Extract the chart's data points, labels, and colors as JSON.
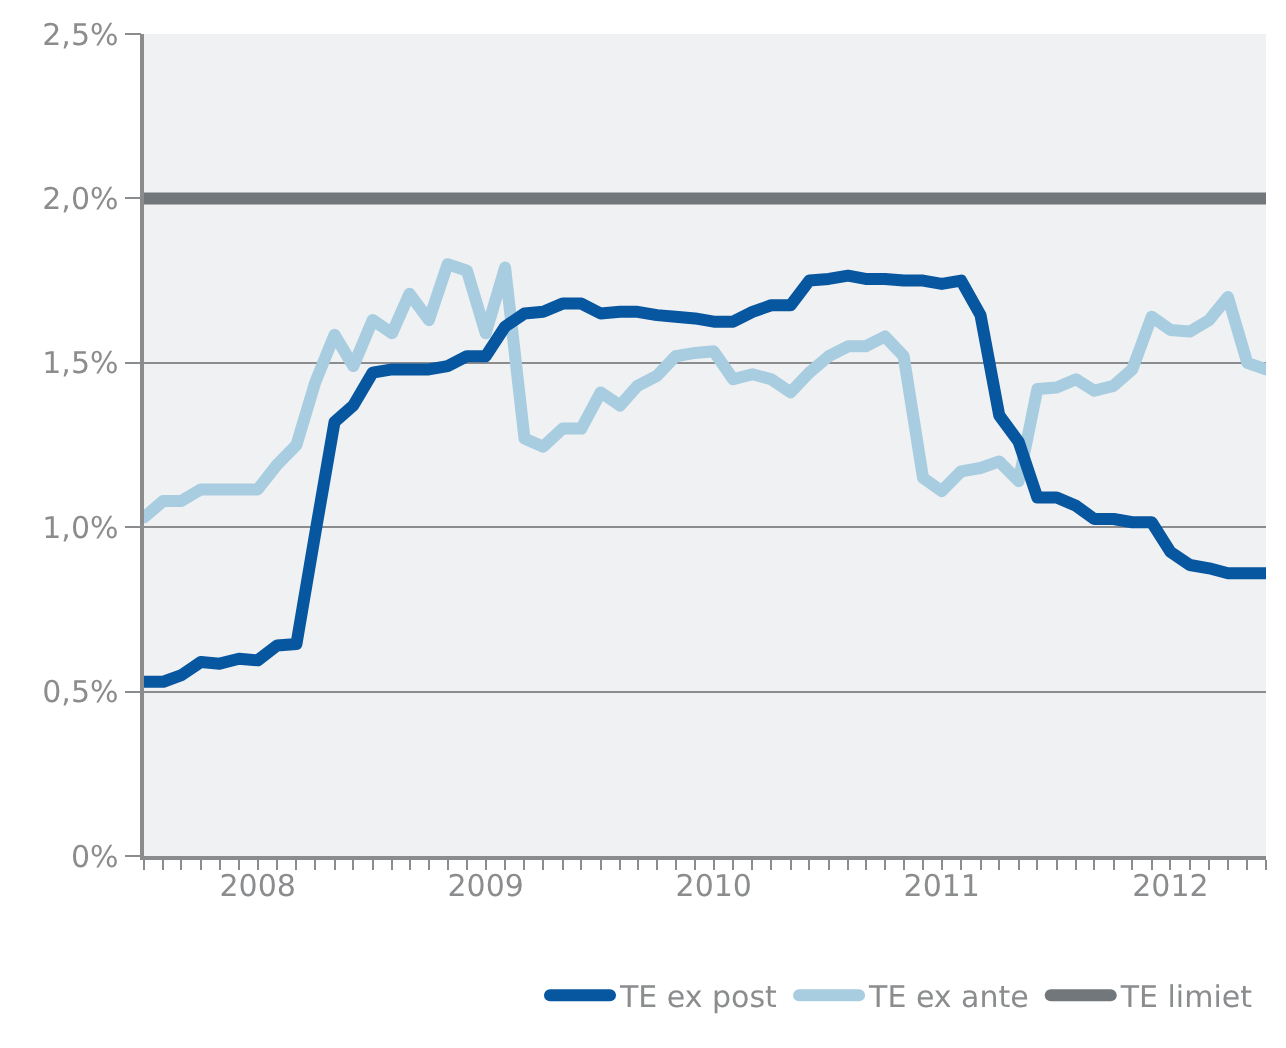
{
  "chart_data": {
    "type": "line",
    "x": [
      "2008-01",
      "2008-02",
      "2008-03",
      "2008-04",
      "2008-05",
      "2008-06",
      "2008-07",
      "2008-08",
      "2008-09",
      "2008-10",
      "2008-11",
      "2008-12",
      "2009-01",
      "2009-02",
      "2009-03",
      "2009-04",
      "2009-05",
      "2009-06",
      "2009-07",
      "2009-08",
      "2009-09",
      "2009-10",
      "2009-11",
      "2009-12",
      "2010-01",
      "2010-02",
      "2010-03",
      "2010-04",
      "2010-05",
      "2010-06",
      "2010-07",
      "2010-08",
      "2010-09",
      "2010-10",
      "2010-11",
      "2010-12",
      "2011-01",
      "2011-02",
      "2011-03",
      "2011-04",
      "2011-05",
      "2011-06",
      "2011-07",
      "2011-08",
      "2011-09",
      "2011-10",
      "2011-11",
      "2011-12",
      "2012-01",
      "2012-02",
      "2012-03",
      "2012-04",
      "2012-05",
      "2012-06",
      "2012-07",
      "2012-08",
      "2012-09",
      "2012-10",
      "2012-11",
      "2012-12"
    ],
    "series": [
      {
        "name": "TE ex post",
        "color": "#0756a0",
        "values": [
          0.53,
          0.53,
          0.55,
          0.59,
          0.585,
          0.6,
          0.595,
          0.64,
          0.645,
          0.98,
          1.32,
          1.37,
          1.47,
          1.48,
          1.48,
          1.48,
          1.49,
          1.52,
          1.52,
          1.61,
          1.65,
          1.655,
          1.68,
          1.68,
          1.65,
          1.655,
          1.655,
          1.645,
          1.64,
          1.635,
          1.625,
          1.625,
          1.655,
          1.675,
          1.675,
          1.75,
          1.755,
          1.765,
          1.755,
          1.755,
          1.75,
          1.75,
          1.74,
          1.75,
          1.645,
          1.34,
          1.26,
          1.09,
          1.09,
          1.065,
          1.025,
          1.025,
          1.015,
          1.015,
          0.925,
          0.885,
          0.875,
          0.86,
          0.86,
          0.86
        ]
      },
      {
        "name": "TE ex ante",
        "color": "#a8cde0",
        "values": [
          1.03,
          1.08,
          1.08,
          1.115,
          1.115,
          1.115,
          1.115,
          1.19,
          1.25,
          1.44,
          1.585,
          1.49,
          1.63,
          1.59,
          1.71,
          1.63,
          1.8,
          1.78,
          1.59,
          1.79,
          1.27,
          1.245,
          1.3,
          1.3,
          1.41,
          1.37,
          1.43,
          1.46,
          1.52,
          1.53,
          1.535,
          1.45,
          1.465,
          1.45,
          1.41,
          1.47,
          1.52,
          1.55,
          1.55,
          1.58,
          1.52,
          1.15,
          1.11,
          1.17,
          1.18,
          1.2,
          1.14,
          1.42,
          1.425,
          1.45,
          1.415,
          1.43,
          1.48,
          1.64,
          1.6,
          1.595,
          1.63,
          1.7,
          1.5,
          1.48
        ]
      },
      {
        "name": "TE limiet",
        "color": "#72777b",
        "values": [
          2,
          2,
          2,
          2,
          2,
          2,
          2,
          2,
          2,
          2,
          2,
          2,
          2,
          2,
          2,
          2,
          2,
          2,
          2,
          2,
          2,
          2,
          2,
          2,
          2,
          2,
          2,
          2,
          2,
          2,
          2,
          2,
          2,
          2,
          2,
          2,
          2,
          2,
          2,
          2,
          2,
          2,
          2,
          2,
          2,
          2,
          2,
          2,
          2,
          2,
          2,
          2,
          2,
          2,
          2,
          2,
          2,
          2,
          2,
          2
        ]
      }
    ],
    "xlim": [
      "2008-01",
      "2012-12"
    ],
    "xticks": [
      {
        "value": "2008-07",
        "label": "2008"
      },
      {
        "value": "2009-07",
        "label": "2009"
      },
      {
        "value": "2010-07",
        "label": "2010"
      },
      {
        "value": "2011-07",
        "label": "2011"
      },
      {
        "value": "2012-07",
        "label": "2012"
      }
    ],
    "ylim": [
      0,
      2.5
    ],
    "yticks": [
      {
        "value": 0,
        "label": "0%"
      },
      {
        "value": 0.5,
        "label": "0,5%"
      },
      {
        "value": 1,
        "label": "1,0%"
      },
      {
        "value": 1.5,
        "label": "1,5%"
      },
      {
        "value": 2,
        "label": "2,0%"
      },
      {
        "value": 2.5,
        "label": "2,5%"
      }
    ],
    "grid": "y",
    "legend": "bottom right",
    "marker": "none",
    "line_style": "solid"
  }
}
